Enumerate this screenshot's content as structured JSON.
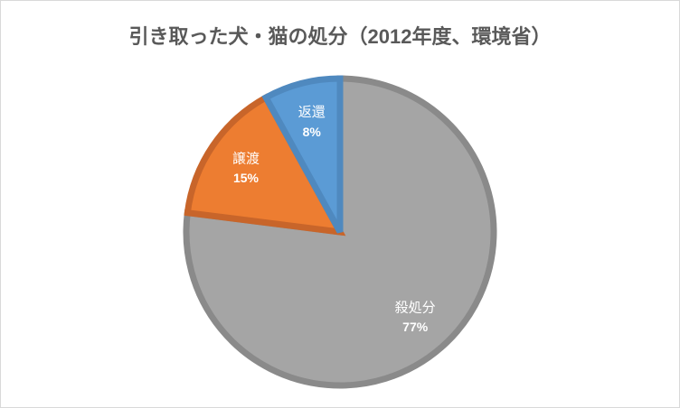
{
  "chart_data": {
    "type": "pie",
    "title": "引き取った犬・猫の処分（2012年度、環境省）",
    "categories": [
      "殺処分",
      "譲渡",
      "返還"
    ],
    "values": [
      77,
      15,
      8
    ],
    "value_labels": [
      "77%",
      "15%",
      "8%"
    ],
    "colors": [
      "#a5a5a5",
      "#ed7d31",
      "#5b9bd5"
    ],
    "border_colors": [
      "#8a8a8a",
      "#c8652a",
      "#4f89bf"
    ]
  }
}
